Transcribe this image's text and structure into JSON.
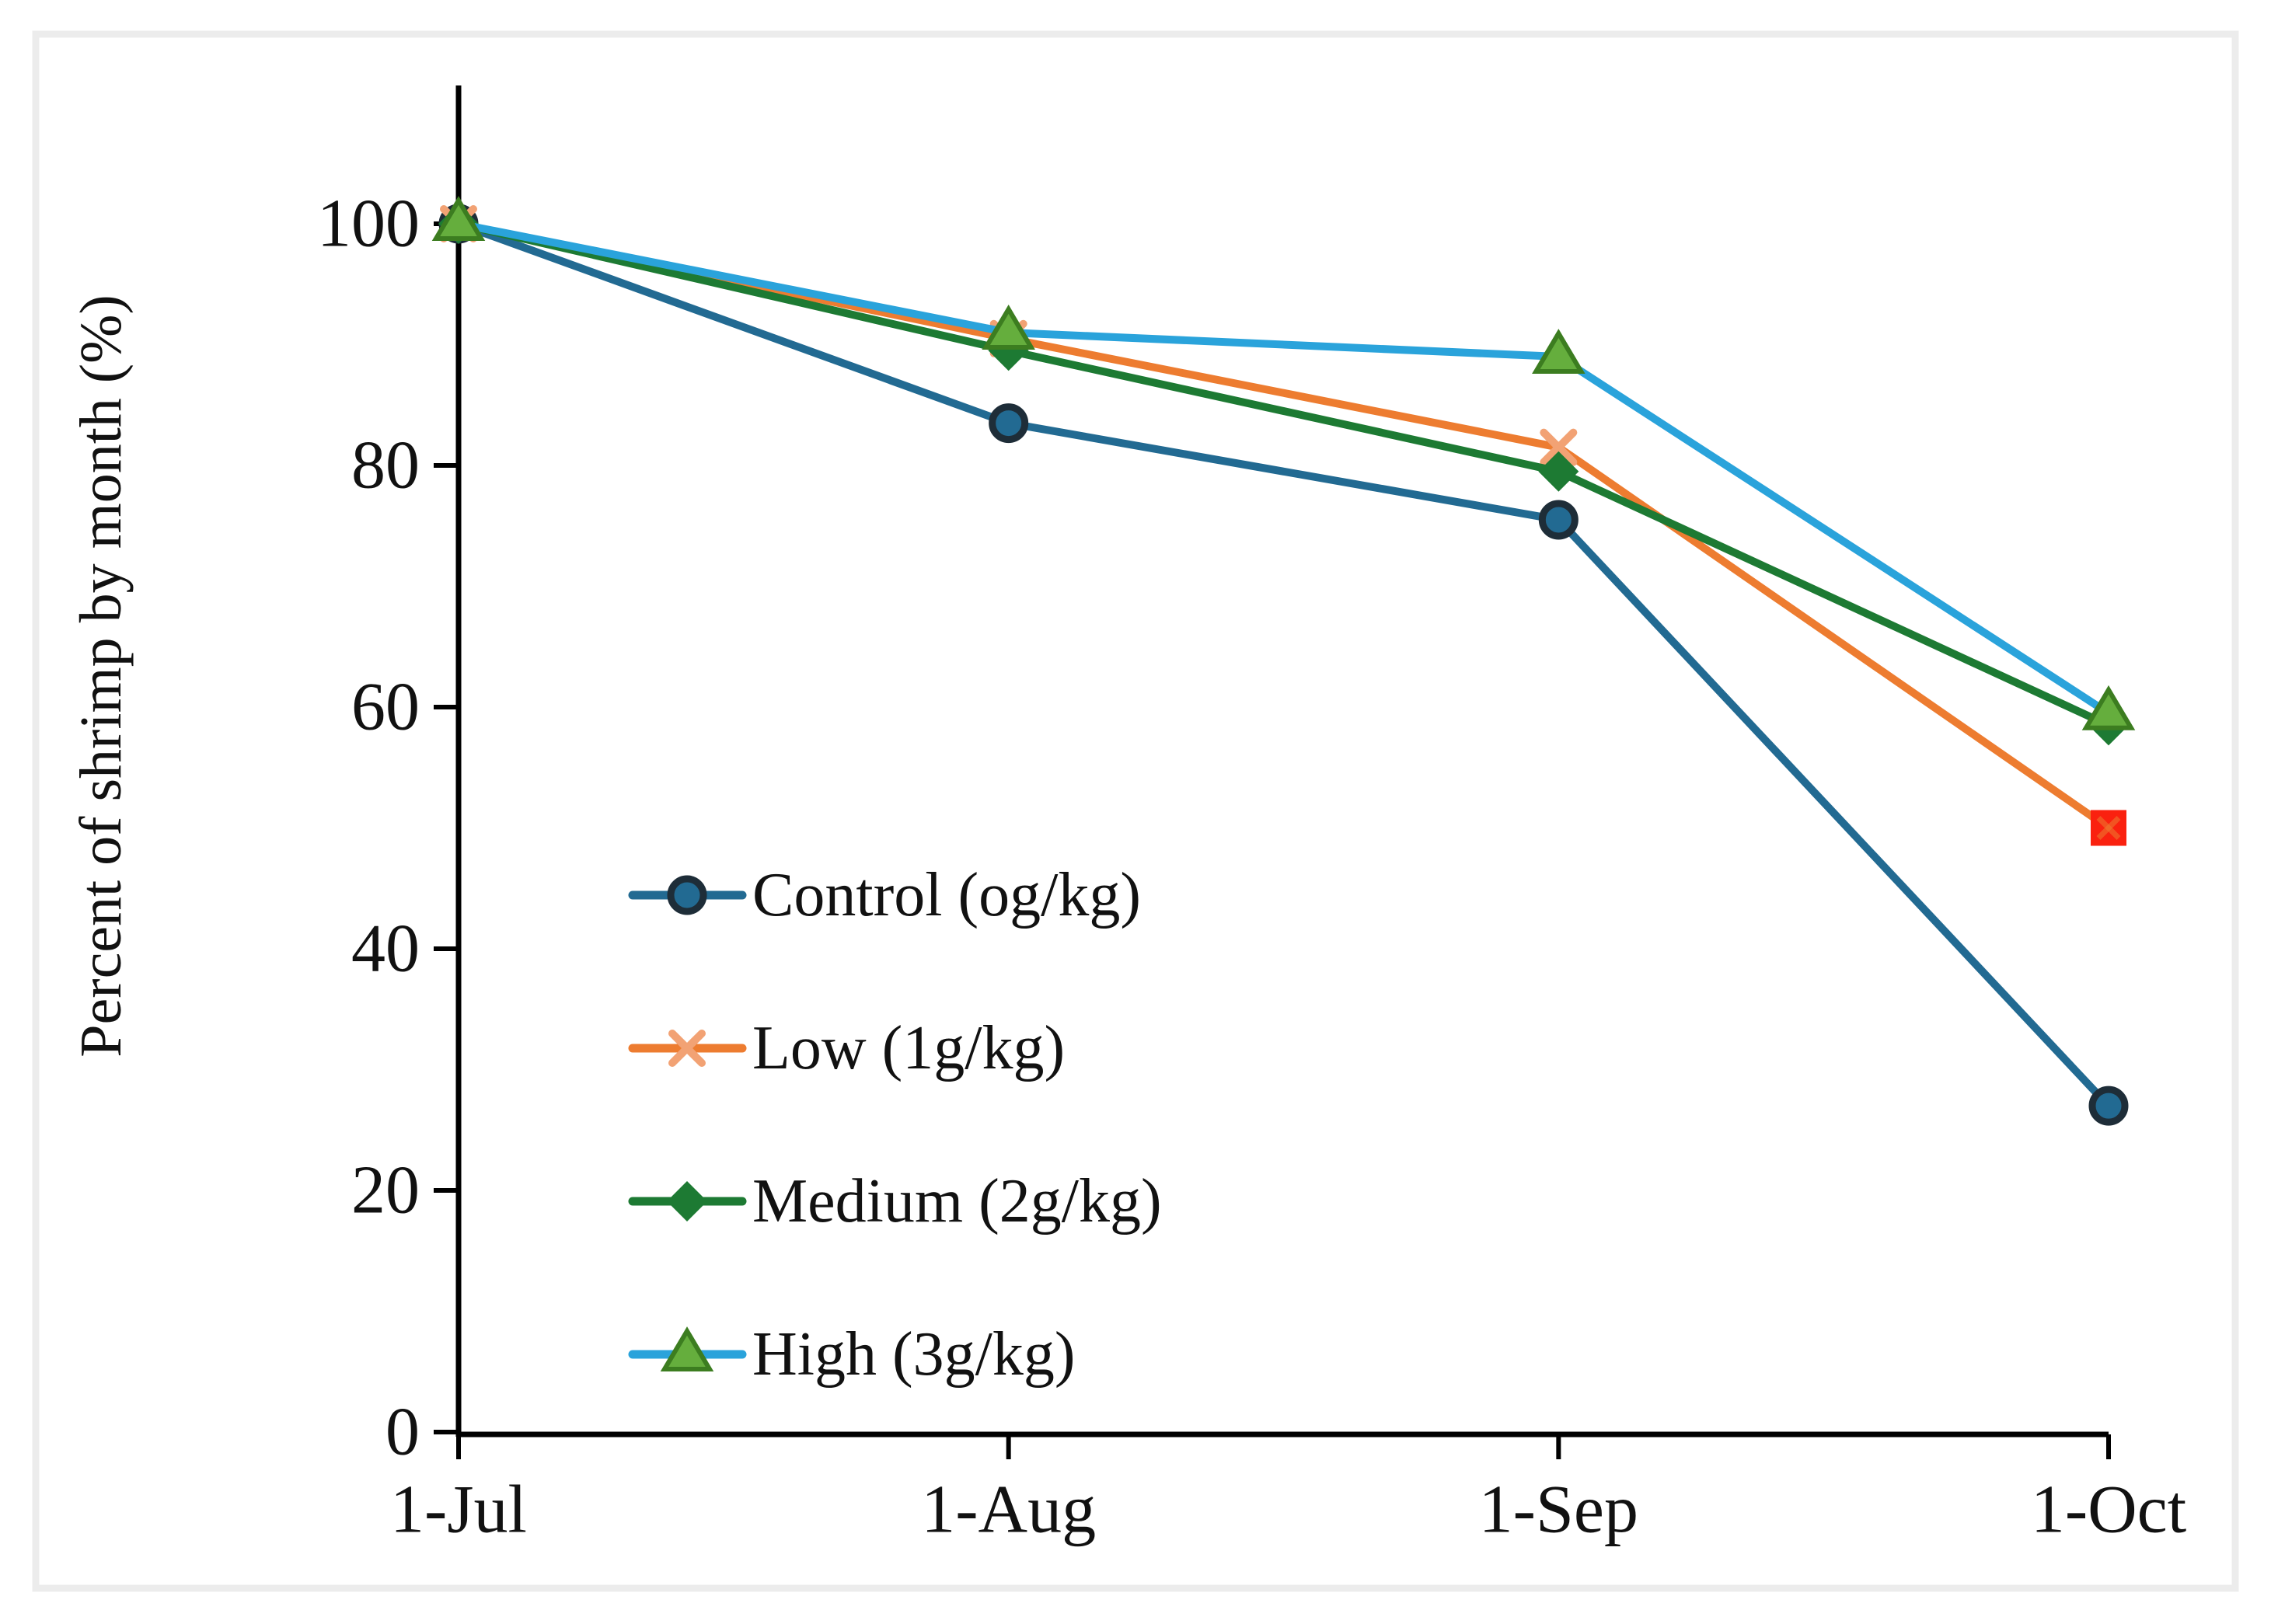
{
  "figure": {
    "background": "#ffffff",
    "frame_color": "#ececec",
    "axis_color": "#000000",
    "text_color": "#111111"
  },
  "chart_data": {
    "type": "line",
    "title": "",
    "xlabel": "",
    "ylabel": "Percent of shrimp by month (%)",
    "categories": [
      "1-Jul",
      "1-Aug",
      "1-Sep",
      "1-Oct"
    ],
    "yticks": [
      0,
      20,
      40,
      60,
      80,
      100
    ],
    "ylim": [
      0,
      111
    ],
    "grid": false,
    "legend_position": "inside-left-middle",
    "series": [
      {
        "name": "Control (og/kg)",
        "marker": "circle",
        "color": "#226a92",
        "marker_fill": "#226a92",
        "marker_stroke": "#1e2d38",
        "values": [
          100,
          83.5,
          75.5,
          27
        ]
      },
      {
        "name": "Low (1g/kg)",
        "marker": "x",
        "color": "#ed7c30",
        "marker_fill": "#f2a274",
        "last_marker": "red-square",
        "last_marker_color": "#fa210f",
        "values": [
          100,
          90.5,
          81.5,
          50
        ]
      },
      {
        "name": "Medium (2g/kg)",
        "marker": "diamond",
        "color": "#1d7a33",
        "marker_fill": "#1d7a33",
        "values": [
          100,
          89.5,
          79.5,
          58.5
        ]
      },
      {
        "name": "High (3g/kg)",
        "marker": "triangle",
        "color": "#2aa3db",
        "marker_fill": "#65ae3d",
        "marker_stroke": "#3c7d20",
        "values": [
          100,
          91,
          89,
          59.5
        ]
      }
    ]
  }
}
